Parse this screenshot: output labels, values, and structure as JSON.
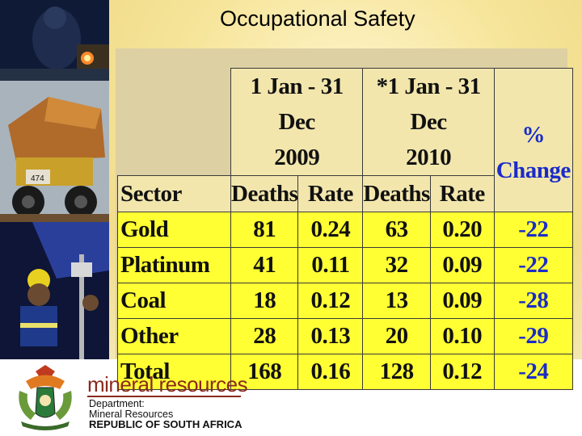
{
  "slide": {
    "title": "Occupational Safety"
  },
  "table": {
    "period_headers": [
      {
        "line1": "1 Jan - 31 Dec",
        "line2": "2009"
      },
      {
        "line1": "*1 Jan - 31 Dec",
        "line2": "2010"
      }
    ],
    "change_header": {
      "line1": "%",
      "line2": "Change"
    },
    "column_headers": [
      "Sector",
      "Deaths",
      "Rate",
      "Deaths",
      "Rate"
    ],
    "rows": [
      {
        "sector": "Gold",
        "deaths_2009": "81",
        "rate_2009": "0.24",
        "deaths_2010": "63",
        "rate_2010": "0.20",
        "change": "-22"
      },
      {
        "sector": "Platinum",
        "deaths_2009": "41",
        "rate_2009": "0.11",
        "deaths_2010": "32",
        "rate_2010": "0.09",
        "change": "-22"
      },
      {
        "sector": "Coal",
        "deaths_2009": "18",
        "rate_2009": "0.12",
        "deaths_2010": "13",
        "rate_2010": "0.09",
        "change": "-28"
      },
      {
        "sector": "Other",
        "deaths_2009": "28",
        "rate_2009": "0.13",
        "deaths_2010": "20",
        "rate_2010": "0.10",
        "change": "-29"
      },
      {
        "sector": "Total",
        "deaths_2009": "168",
        "rate_2009": "0.16",
        "deaths_2010": "128",
        "rate_2010": "0.12",
        "change": "-24"
      }
    ]
  },
  "footer": {
    "brand": "mineral resources",
    "dept_line1": "Department:",
    "dept_line2": "Mineral Resources",
    "dept_line3": "REPUBLIC OF SOUTH AFRICA"
  },
  "colors": {
    "row_fill": "#ffff33",
    "header_fill": "#f2e6ad",
    "change_text": "#1a2cc8",
    "brand_text": "#8a2a1e"
  },
  "icons": [
    "south-africa-coat-of-arms-icon",
    "mining-photo-collage"
  ]
}
